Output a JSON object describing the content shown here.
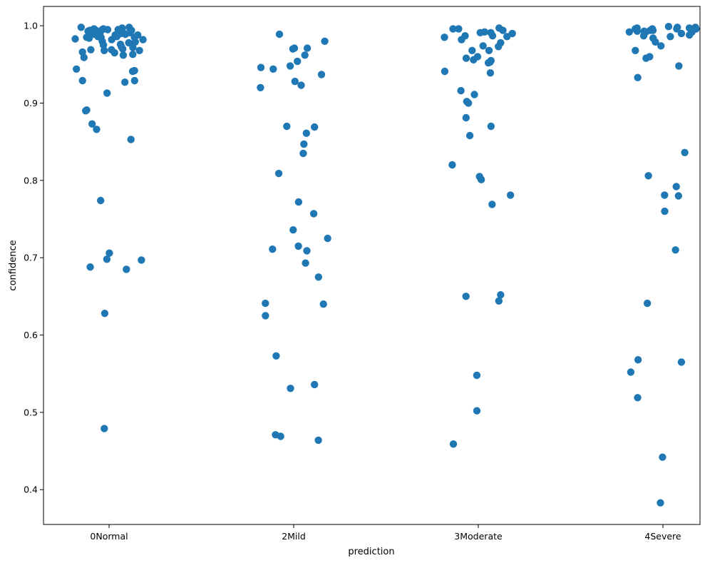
{
  "chart_data": {
    "type": "scatter",
    "title": "",
    "xlabel": "prediction",
    "ylabel": "confidence",
    "categories": [
      "0Normal",
      "2Mild",
      "3Moderate",
      "4Severe"
    ],
    "ylim": [
      0.355,
      1.025
    ],
    "yticks": [
      0.4,
      0.5,
      0.6,
      0.7,
      0.8,
      0.9,
      1.0
    ],
    "ytick_labels": [
      "0.4",
      "0.5",
      "0.6",
      "0.7",
      "0.8",
      "0.9",
      "1.0"
    ],
    "grid": false,
    "legend": "none",
    "marker_color": "#1f77b4",
    "jitter": true,
    "series": [
      {
        "category": "0Normal",
        "values": [
          0.993,
          0.991,
          0.995,
          0.982,
          0.973,
          0.99,
          0.985,
          0.979,
          0.962,
          0.994,
          0.989,
          0.986,
          0.998,
          0.993,
          0.965,
          0.969,
          0.984,
          0.978,
          0.942,
          0.941,
          0.929,
          0.913,
          0.927,
          0.992,
          0.996,
          0.991,
          0.988,
          0.985,
          0.975,
          0.968,
          0.853,
          0.891,
          0.89,
          0.866,
          0.774,
          0.706,
          0.697,
          0.698,
          0.685,
          0.688,
          0.628,
          0.929,
          0.993,
          0.994,
          0.969,
          0.963,
          0.97,
          0.966,
          0.988,
          0.998,
          0.997,
          0.995,
          0.992,
          0.99,
          0.985,
          0.98,
          0.975,
          0.968,
          0.479,
          0.944,
          0.873,
          0.959,
          0.976,
          0.983,
          0.989,
          0.993,
          0.996,
          0.994,
          0.991,
          0.995,
          0.982,
          0.972,
          0.986
        ]
      },
      {
        "category": "2Mild",
        "values": [
          0.971,
          0.946,
          0.954,
          0.948,
          0.971,
          0.962,
          0.989,
          0.97,
          0.98,
          0.944,
          0.928,
          0.937,
          0.923,
          0.92,
          0.835,
          0.847,
          0.87,
          0.869,
          0.861,
          0.809,
          0.757,
          0.725,
          0.736,
          0.711,
          0.715,
          0.693,
          0.675,
          0.772,
          0.709,
          0.641,
          0.64,
          0.625,
          0.573,
          0.531,
          0.536,
          0.469,
          0.464,
          0.471
        ]
      },
      {
        "category": "3Moderate",
        "values": [
          0.997,
          0.968,
          0.956,
          0.941,
          0.958,
          0.987,
          0.978,
          0.973,
          0.99,
          0.992,
          0.994,
          0.987,
          0.985,
          0.982,
          0.991,
          0.952,
          0.955,
          0.953,
          0.96,
          0.968,
          0.986,
          0.991,
          0.996,
          0.974,
          0.996,
          0.939,
          0.911,
          0.881,
          0.87,
          0.9,
          0.858,
          0.916,
          0.902,
          0.82,
          0.801,
          0.781,
          0.769,
          0.805,
          0.652,
          0.644,
          0.65,
          0.548,
          0.502,
          0.459
        ]
      },
      {
        "category": "4Severe",
        "values": [
          0.988,
          0.996,
          0.992,
          0.986,
          0.979,
          0.968,
          0.933,
          0.997,
          0.993,
          0.99,
          0.998,
          0.996,
          0.994,
          0.987,
          0.974,
          0.992,
          0.994,
          0.996,
          0.997,
          0.984,
          0.996,
          0.993,
          0.992,
          0.999,
          0.998,
          0.958,
          0.948,
          0.96,
          0.836,
          0.806,
          0.781,
          0.78,
          0.76,
          0.792,
          0.71,
          0.641,
          0.568,
          0.565,
          0.552,
          0.519,
          0.442,
          0.383
        ]
      }
    ]
  }
}
